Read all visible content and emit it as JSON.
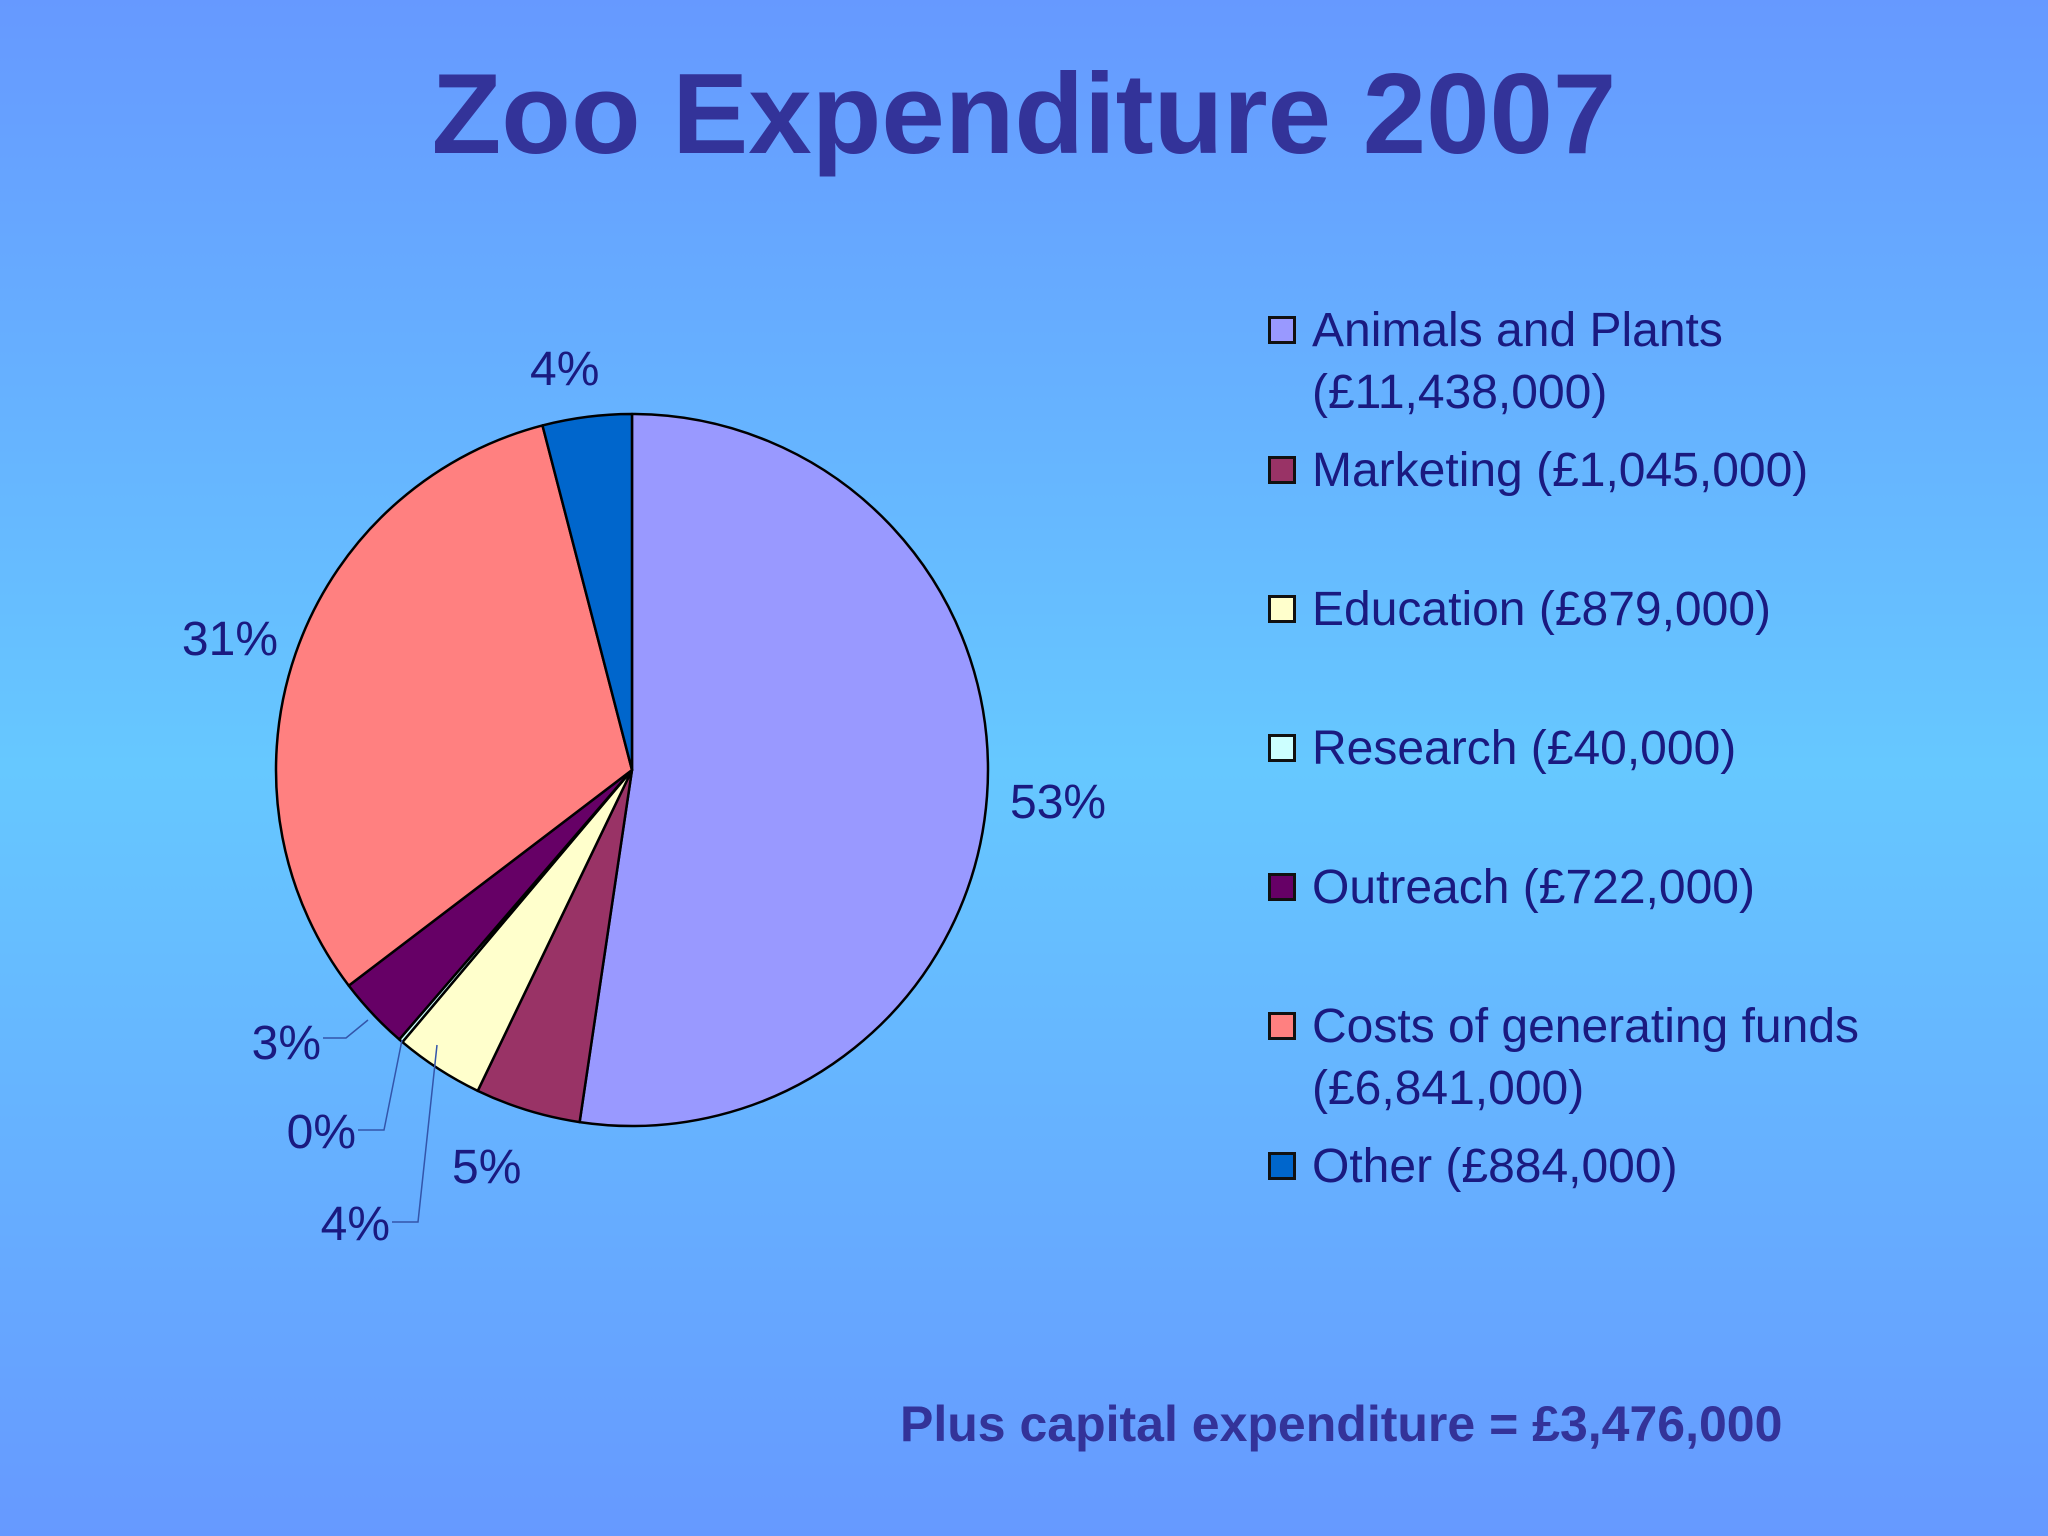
{
  "title": "Zoo Expenditure 2007",
  "footer": "Plus capital expenditure = £3,476,000",
  "chart_data": {
    "type": "pie",
    "title": "Zoo Expenditure 2007",
    "legend_position": "right",
    "slices": [
      {
        "name": "Animals and Plants",
        "legend": "Animals and Plants\n(£11,438,000)",
        "value": 11438000,
        "percent_label": "53%",
        "color": "#9999ff"
      },
      {
        "name": "Marketing",
        "legend": "Marketing (£1,045,000)",
        "value": 1045000,
        "percent_label": "5%",
        "color": "#993366"
      },
      {
        "name": "Education",
        "legend": "Education (£879,000)",
        "value": 879000,
        "percent_label": "4%",
        "color": "#ffffcc"
      },
      {
        "name": "Research",
        "legend": "Research (£40,000)",
        "value": 40000,
        "percent_label": "0%",
        "color": "#ccffff"
      },
      {
        "name": "Outreach",
        "legend": "Outreach (£722,000)",
        "value": 722000,
        "percent_label": "3%",
        "color": "#660066"
      },
      {
        "name": "Costs of generating funds",
        "legend": "Costs of generating funds\n(£6,841,000)",
        "value": 6841000,
        "percent_label": "31%",
        "color": "#ff8080"
      },
      {
        "name": "Other",
        "legend": "Other (£884,000)",
        "value": 884000,
        "percent_label": "4%",
        "color": "#0066cc"
      }
    ]
  }
}
